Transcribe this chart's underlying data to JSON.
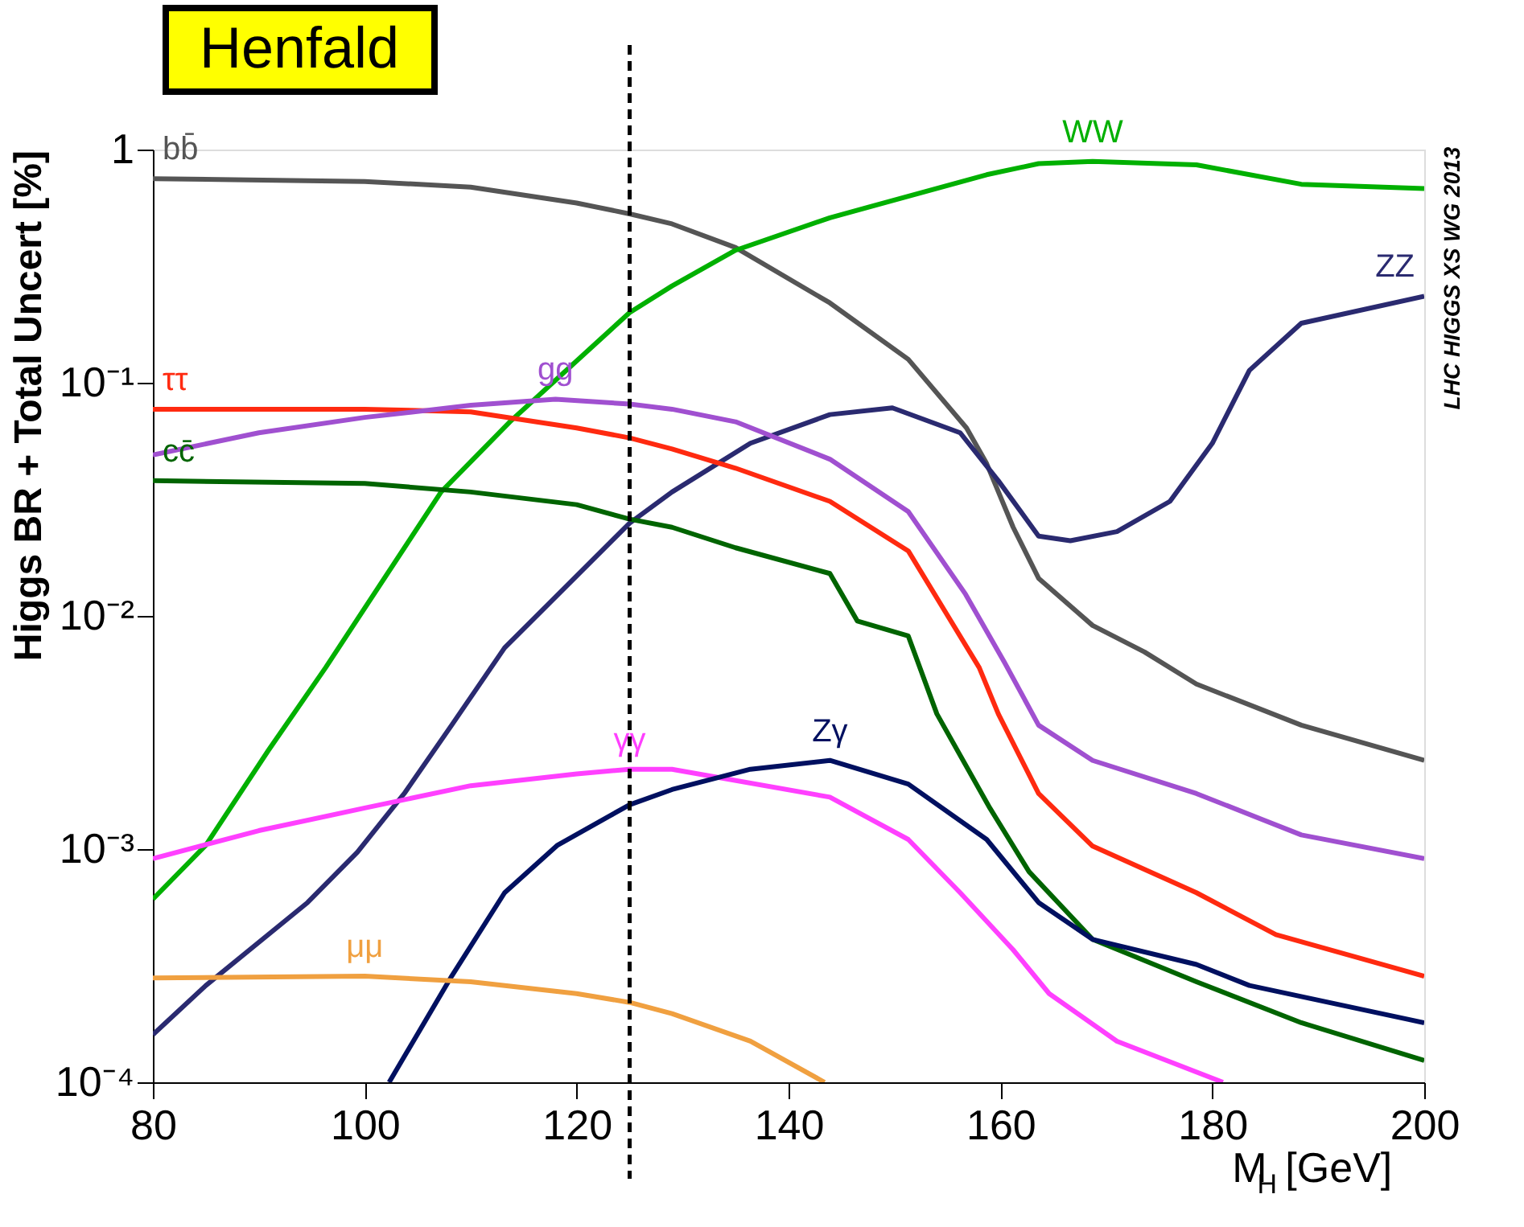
{
  "chart_data": {
    "type": "line",
    "title": "Henfald",
    "xlabel": "M$_{H}$ [GeV]",
    "ylabel": "Higgs BR + Total Uncert [%]",
    "log": "y",
    "grid": false,
    "marker": "none",
    "line_style": "solid",
    "xlim": [
      80,
      200
    ],
    "xticks": [
      80,
      100,
      120,
      140,
      160,
      180,
      200
    ],
    "ylim": [
      0.0001,
      1
    ],
    "yticks": [
      {
        "value": 0.0001,
        "label": "10⁻⁴"
      },
      {
        "value": 0.001,
        "label": "10⁻³"
      },
      {
        "value": 0.01,
        "label": "10⁻²"
      },
      {
        "value": 0.1,
        "label": "10⁻¹"
      },
      1
    ],
    "ref_lines": [
      {
        "axis": "x",
        "value": 125,
        "color": "#000000",
        "line_style": "dashed"
      }
    ],
    "series": [
      {
        "name": "bb̄",
        "color": "#555555",
        "x": [
          80,
          100,
          110,
          120,
          125,
          129,
          135,
          143.9,
          151.3,
          156.8,
          158.7,
          161.2,
          163.6,
          168.7,
          173.6,
          178.5,
          188.4,
          200
        ],
        "values": [
          0.75,
          0.73,
          0.69,
          0.59,
          0.53,
          0.48,
          0.38,
          0.22,
          0.126,
          0.064,
          0.045,
          0.024,
          0.0145,
          0.0091,
          0.007,
          0.0051,
          0.0034,
          0.0024
        ]
      },
      {
        "name": "WW",
        "color": "#00b000",
        "x": [
          80,
          85,
          90.9,
          96.3,
          107.2,
          113.7,
          125,
          129,
          135,
          143.9,
          158.7,
          163.6,
          168.7,
          178.5,
          188.4,
          200
        ],
        "values": [
          0.00061,
          0.00104,
          0.00265,
          0.006,
          0.034,
          0.068,
          0.2,
          0.26,
          0.37,
          0.51,
          0.78,
          0.87,
          0.89,
          0.86,
          0.71,
          0.68
        ]
      },
      {
        "name": "ZZ",
        "color": "#2a2a70",
        "x": [
          80,
          85,
          94.6,
          99.3,
          103.8,
          108.2,
          113.2,
          125,
          129,
          136.4,
          143.9,
          149.8,
          156.2,
          159.8,
          163.6,
          166.6,
          171,
          176,
          180,
          183.5,
          188.4,
          200
        ],
        "values": [
          0.00016,
          0.00026,
          0.00059,
          0.00097,
          0.00175,
          0.0034,
          0.0073,
          0.025,
          0.034,
          0.055,
          0.073,
          0.078,
          0.061,
          0.038,
          0.022,
          0.021,
          0.023,
          0.031,
          0.055,
          0.113,
          0.18,
          0.235
        ]
      },
      {
        "name": "ττ",
        "color": "#ff2a10",
        "x": [
          80,
          100,
          110,
          120,
          125,
          129,
          135,
          143.9,
          151.3,
          158,
          159.8,
          163.6,
          168.7,
          178.5,
          186,
          200
        ],
        "values": [
          0.077,
          0.077,
          0.075,
          0.064,
          0.058,
          0.052,
          0.043,
          0.031,
          0.019,
          0.006,
          0.0038,
          0.00173,
          0.00103,
          0.00065,
          0.00043,
          0.000285
        ]
      },
      {
        "name": "gg",
        "color": "#a050d0",
        "x": [
          80,
          90,
          100,
          110,
          118,
          125,
          129,
          135,
          143.9,
          151.3,
          156.7,
          160.4,
          163.6,
          168.7,
          178.5,
          188.4,
          200
        ],
        "values": [
          0.049,
          0.061,
          0.071,
          0.08,
          0.085,
          0.081,
          0.077,
          0.068,
          0.047,
          0.028,
          0.0124,
          0.0063,
          0.0034,
          0.0024,
          0.00173,
          0.00115,
          0.00091
        ]
      },
      {
        "name": "cc̄",
        "color": "#006400",
        "x": [
          80,
          100,
          110,
          120,
          125,
          129,
          135,
          143.9,
          146.5,
          151.3,
          154,
          159,
          162.7,
          168.7,
          178.5,
          188.4,
          200
        ],
        "values": [
          0.038,
          0.037,
          0.034,
          0.03,
          0.026,
          0.024,
          0.0196,
          0.0152,
          0.0095,
          0.0082,
          0.0038,
          0.0015,
          0.0008,
          0.00041,
          0.00027,
          0.00018,
          0.000124
        ]
      },
      {
        "name": "γγ",
        "color": "#ff40ff",
        "x": [
          80,
          90,
          100,
          110,
          120,
          125,
          129,
          143.9,
          151.3,
          156.2,
          161.2,
          164.6,
          171,
          181
        ],
        "values": [
          0.00091,
          0.0012,
          0.0015,
          0.00187,
          0.0021,
          0.0022,
          0.0022,
          0.00167,
          0.0011,
          0.00065,
          0.00037,
          0.00024,
          0.00015,
          0.0001
        ]
      },
      {
        "name": "Zγ",
        "color": "#001060",
        "x": [
          102.3,
          108.2,
          113.2,
          118.2,
          125,
          129,
          136.4,
          143.9,
          151.3,
          158.7,
          163.6,
          168.7,
          178.5,
          183.5,
          200
        ],
        "values": [
          0.0001,
          0.000285,
          0.00065,
          0.00104,
          0.00155,
          0.0018,
          0.0022,
          0.0024,
          0.0019,
          0.0011,
          0.00059,
          0.00041,
          0.00032,
          0.00026,
          0.00018
        ]
      },
      {
        "name": "μμ",
        "color": "#f0a040",
        "x": [
          80,
          100,
          110,
          120,
          125,
          129,
          136.4,
          143.4
        ],
        "values": [
          0.00028,
          0.000285,
          0.00027,
          0.00024,
          0.00022,
          0.000197,
          0.00015,
          0.0001
        ]
      }
    ],
    "annotations": [
      "LHC HIGGS XS WG 2013"
    ]
  }
}
